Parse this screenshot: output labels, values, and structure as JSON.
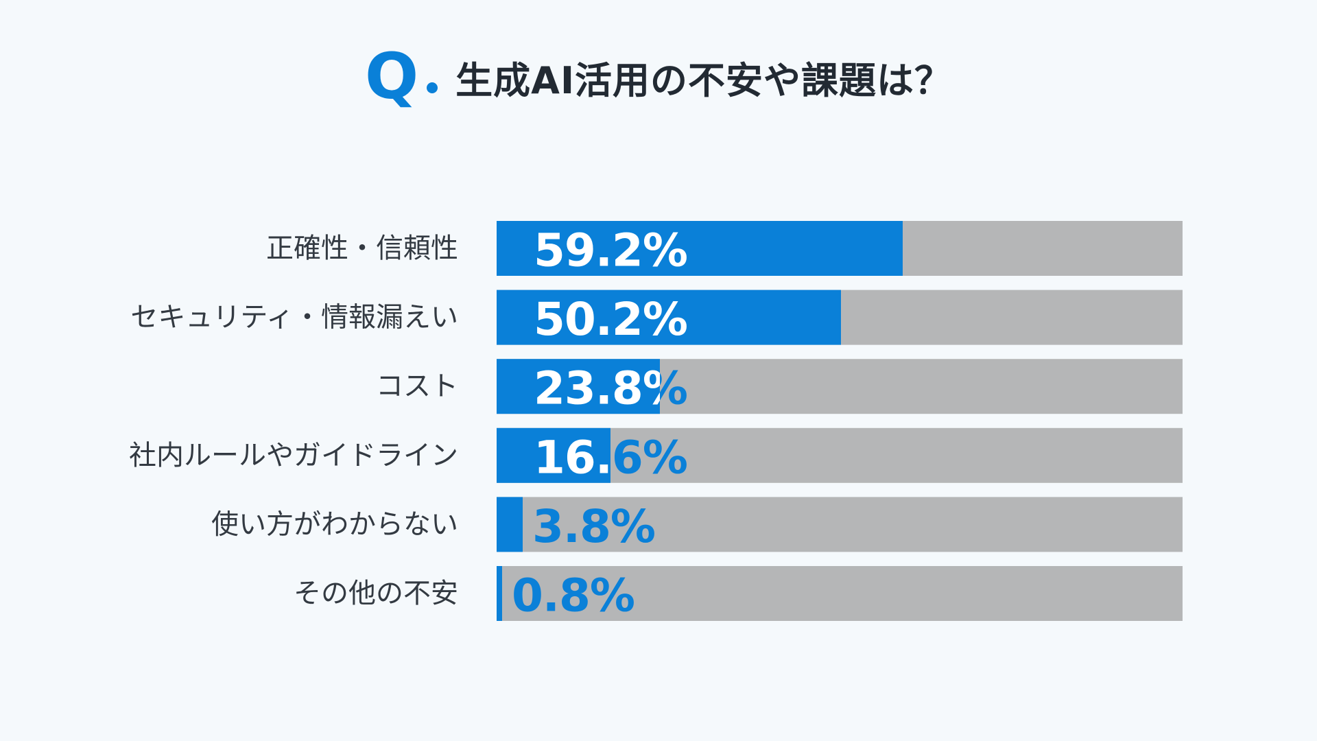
{
  "header": {
    "q_mark": "Q",
    "title": "生成AI活用の不安や課題は？"
  },
  "colors": {
    "accent": "#0a80d8",
    "track": "#b5b6b7",
    "background": "#f5f9fc",
    "text": "#222a33",
    "label_on_bar": "#ffffff"
  },
  "chart_data": {
    "type": "bar",
    "orientation": "horizontal",
    "title": "生成AI活用の不安や課題は？",
    "categories": [
      "正確性・信頼性",
      "セキュリティ・情報漏えい",
      "コスト",
      "社内ルールやガイドライン",
      "使い方がわからない",
      "その他の不安"
    ],
    "values": [
      59.2,
      50.2,
      23.8,
      16.6,
      3.8,
      0.8
    ],
    "value_labels": [
      "59.2%",
      "50.2%",
      "23.8%",
      "16.6%",
      "3.8%",
      "0.8%"
    ],
    "unit": "%",
    "xlim": [
      0,
      100
    ],
    "grid": false,
    "legend": "none"
  }
}
